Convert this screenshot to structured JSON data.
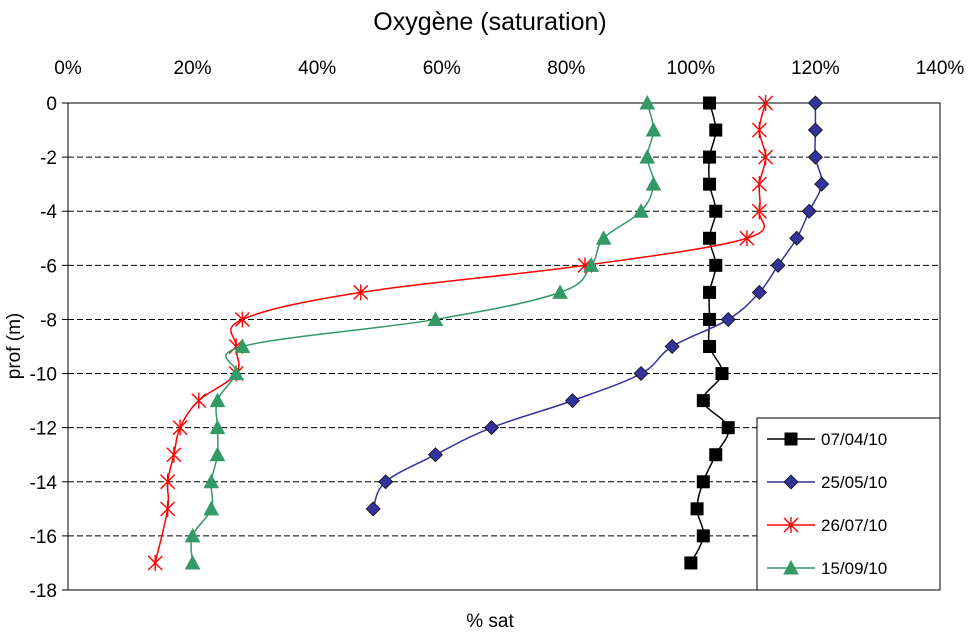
{
  "chart_data": {
    "type": "line",
    "title": "Oxygène (saturation)",
    "xlabel": "% sat",
    "ylabel": "prof (m)",
    "x_axis_position": "top",
    "xlim": [
      0,
      140
    ],
    "xticks": [
      0,
      20,
      40,
      60,
      80,
      100,
      120,
      140
    ],
    "xtick_labels": [
      "0%",
      "20%",
      "40%",
      "60%",
      "80%",
      "100%",
      "120%",
      "140%"
    ],
    "ylim": [
      -18,
      0
    ],
    "yticks": [
      0,
      -2,
      -4,
      -6,
      -8,
      -10,
      -12,
      -14,
      -16,
      -18
    ],
    "ytick_labels": [
      "0",
      "-2",
      "-4",
      "-6",
      "-8",
      "-10",
      "-12",
      "-14",
      "-16",
      "-18"
    ],
    "grid": "horizontal dashed",
    "legend_position": "bottom-right",
    "series": [
      {
        "name": "07/04/10",
        "color": "#000000",
        "marker": "square",
        "points": [
          [
            103,
            0
          ],
          [
            104,
            -1
          ],
          [
            103,
            -2
          ],
          [
            103,
            -3
          ],
          [
            104,
            -4
          ],
          [
            103,
            -5
          ],
          [
            104,
            -6
          ],
          [
            103,
            -7
          ],
          [
            103,
            -8
          ],
          [
            103,
            -9
          ],
          [
            105,
            -10
          ],
          [
            102,
            -11
          ],
          [
            106,
            -12
          ],
          [
            104,
            -13
          ],
          [
            102,
            -14
          ],
          [
            101,
            -15
          ],
          [
            102,
            -16
          ],
          [
            100,
            -17
          ]
        ]
      },
      {
        "name": "25/05/10",
        "color": "#333399",
        "marker": "diamond",
        "points": [
          [
            120,
            0
          ],
          [
            120,
            -1
          ],
          [
            120,
            -2
          ],
          [
            121,
            -3
          ],
          [
            119,
            -4
          ],
          [
            117,
            -5
          ],
          [
            114,
            -6
          ],
          [
            111,
            -7
          ],
          [
            106,
            -8
          ],
          [
            97,
            -9
          ],
          [
            92,
            -10
          ],
          [
            81,
            -11
          ],
          [
            68,
            -12
          ],
          [
            59,
            -13
          ],
          [
            51,
            -14
          ],
          [
            49,
            -15
          ]
        ]
      },
      {
        "name": "26/07/10",
        "color": "#ff0000",
        "marker": "star",
        "points": [
          [
            112,
            0
          ],
          [
            111,
            -1
          ],
          [
            112,
            -2
          ],
          [
            111,
            -3
          ],
          [
            111,
            -4
          ],
          [
            109,
            -5
          ],
          [
            83,
            -6
          ],
          [
            47,
            -7
          ],
          [
            28,
            -8
          ],
          [
            27,
            -9
          ],
          [
            27,
            -10
          ],
          [
            21,
            -11
          ],
          [
            18,
            -12
          ],
          [
            17,
            -13
          ],
          [
            16,
            -14
          ],
          [
            16,
            -15
          ],
          [
            14,
            -17
          ]
        ]
      },
      {
        "name": "15/09/10",
        "color": "#339966",
        "marker": "triangle",
        "points": [
          [
            93,
            0
          ],
          [
            94,
            -1
          ],
          [
            93,
            -2
          ],
          [
            94,
            -3
          ],
          [
            92,
            -4
          ],
          [
            86,
            -5
          ],
          [
            84,
            -6
          ],
          [
            79,
            -7
          ],
          [
            59,
            -8
          ],
          [
            28,
            -9
          ],
          [
            27,
            -10
          ],
          [
            24,
            -11
          ],
          [
            24,
            -12
          ],
          [
            24,
            -13
          ],
          [
            23,
            -14
          ],
          [
            23,
            -15
          ],
          [
            20,
            -16
          ],
          [
            20,
            -17
          ]
        ]
      }
    ]
  }
}
